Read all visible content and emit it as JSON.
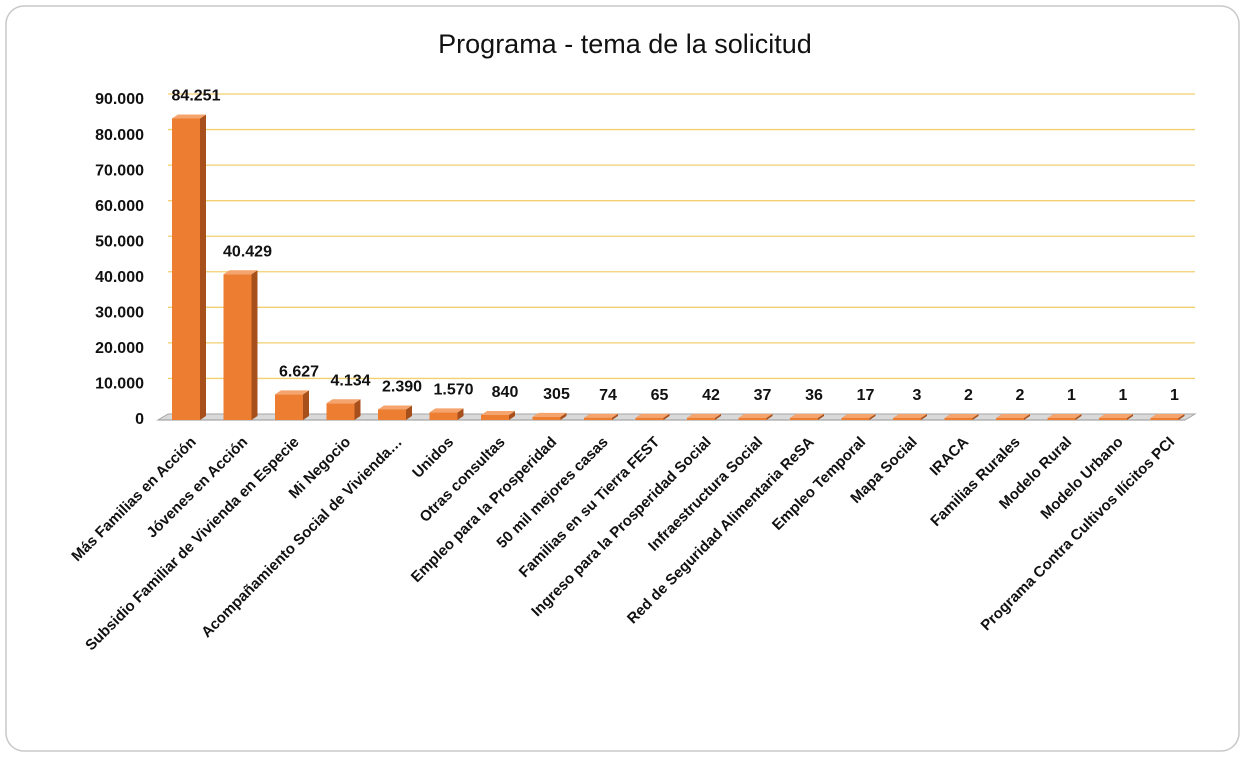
{
  "chart_data": {
    "type": "bar",
    "title": "Programa - tema de la solicitud",
    "categories": [
      "Más Familias en Acción",
      "Jóvenes en Acción",
      "Subsidio Familiar de Vivienda en Especie",
      "Mi Negocio",
      "Acompañamiento Social de Vivienda…",
      "Unidos",
      "Otras consultas",
      "Empleo para la Prosperidad",
      "50 mil mejores casas",
      "Familias en su Tierra FEST",
      "Ingreso para la Prosperidad Social",
      "Infraestructura Social",
      "Red de Seguridad Alimentaria ReSA",
      "Empleo Temporal",
      "Mapa Social",
      "IRACA",
      "Familias Rurales",
      "Modelo Rural",
      "Modelo Urbano",
      "Programa Contra Cultivos Ilícitos PCI"
    ],
    "values": [
      84251,
      40429,
      6627,
      4134,
      2390,
      1570,
      840,
      305,
      74,
      65,
      42,
      37,
      36,
      17,
      3,
      2,
      2,
      1,
      1,
      1
    ],
    "value_labels": [
      "84.251",
      "40.429",
      "6.627",
      "4.134",
      "2.390",
      "1.570",
      "840",
      "305",
      "74",
      "65",
      "42",
      "37",
      "36",
      "17",
      "3",
      "2",
      "2",
      "1",
      "1",
      "1"
    ],
    "color": "#ed7d31",
    "ylim": [
      0,
      90000
    ],
    "yticks": [
      0,
      {
        "value": 10000,
        "label": "10.000"
      },
      {
        "value": 20000,
        "label": "20.000"
      },
      {
        "value": 30000,
        "label": "30.000"
      },
      {
        "value": 40000,
        "label": "40.000"
      },
      {
        "value": 50000,
        "label": "50.000"
      },
      {
        "value": 60000,
        "label": "60.000"
      },
      {
        "value": 70000,
        "label": "70.000"
      },
      {
        "value": 80000,
        "label": "80.000"
      },
      {
        "value": 90000,
        "label": "90.000"
      }
    ],
    "grid": true
  }
}
